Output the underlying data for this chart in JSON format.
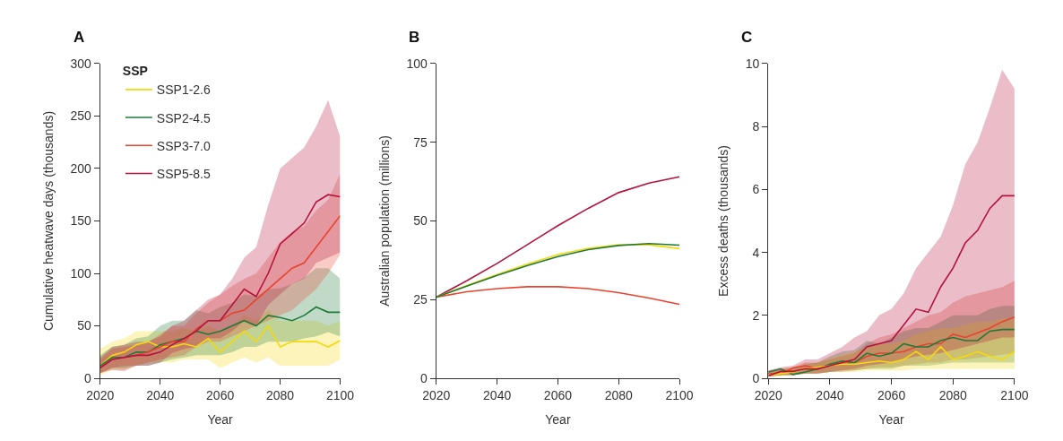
{
  "chart_data": [
    {
      "type": "line",
      "title": "A",
      "xlabel": "Year",
      "ylabel": "Cumulative heatwave days (thousands)",
      "legend_title": "SSP",
      "legend": "top left",
      "xlim": [
        2020,
        2100
      ],
      "xticks": [
        2020,
        2040,
        2060,
        2080,
        2100
      ],
      "ylim": [
        0,
        300
      ],
      "yticks": [
        0,
        50,
        100,
        150,
        200,
        250,
        300
      ],
      "x": [
        2020,
        2024,
        2028,
        2032,
        2036,
        2040,
        2044,
        2048,
        2052,
        2056,
        2060,
        2064,
        2068,
        2072,
        2076,
        2080,
        2084,
        2088,
        2092,
        2096,
        2100
      ],
      "series": [
        {
          "name": "SSP1-2.6",
          "color": "#f5d90a",
          "values": [
            12,
            22,
            25,
            32,
            35,
            30,
            30,
            33,
            30,
            38,
            25,
            35,
            45,
            35,
            50,
            30,
            35,
            35,
            35,
            30,
            36
          ],
          "lower": [
            3,
            8,
            8,
            12,
            15,
            15,
            15,
            18,
            18,
            18,
            10,
            15,
            20,
            15,
            20,
            12,
            12,
            12,
            12,
            12,
            18
          ],
          "upper": [
            28,
            35,
            38,
            45,
            45,
            45,
            45,
            48,
            45,
            50,
            45,
            50,
            60,
            55,
            65,
            55,
            55,
            55,
            55,
            50,
            55
          ]
        },
        {
          "name": "SSP2-4.5",
          "color": "#1f7a3a",
          "values": [
            12,
            20,
            20,
            25,
            25,
            32,
            35,
            38,
            45,
            42,
            45,
            50,
            55,
            50,
            60,
            58,
            55,
            60,
            68,
            63,
            63
          ],
          "lower": [
            5,
            10,
            10,
            12,
            12,
            15,
            18,
            20,
            22,
            22,
            22,
            25,
            30,
            30,
            35,
            35,
            35,
            38,
            40,
            44,
            40
          ],
          "upper": [
            22,
            30,
            32,
            38,
            40,
            50,
            55,
            55,
            65,
            62,
            68,
            72,
            80,
            78,
            85,
            86,
            90,
            96,
            105,
            105,
            95
          ]
        },
        {
          "name": "SSP3-7.0",
          "color": "#e8432e",
          "values": [
            10,
            18,
            20,
            22,
            25,
            30,
            35,
            35,
            47,
            55,
            55,
            62,
            65,
            75,
            85,
            95,
            105,
            110,
            125,
            140,
            155
          ],
          "lower": [
            5,
            10,
            12,
            12,
            15,
            18,
            20,
            22,
            30,
            35,
            35,
            40,
            45,
            50,
            55,
            60,
            65,
            75,
            85,
            100,
            118
          ],
          "upper": [
            18,
            28,
            30,
            32,
            35,
            42,
            50,
            50,
            62,
            72,
            80,
            88,
            95,
            100,
            115,
            130,
            140,
            145,
            160,
            170,
            195
          ]
        },
        {
          "name": "SSP5-8.5",
          "color": "#b5123e",
          "values": [
            10,
            18,
            20,
            22,
            22,
            25,
            32,
            38,
            45,
            55,
            55,
            70,
            85,
            78,
            100,
            128,
            138,
            148,
            168,
            175,
            173
          ],
          "lower": [
            5,
            8,
            7,
            12,
            12,
            15,
            24,
            28,
            30,
            38,
            38,
            45,
            55,
            50,
            70,
            80,
            90,
            95,
            110,
            115,
            120
          ],
          "upper": [
            20,
            30,
            32,
            35,
            35,
            40,
            50,
            55,
            65,
            75,
            80,
            95,
            115,
            125,
            165,
            200,
            210,
            220,
            240,
            265,
            230
          ]
        }
      ]
    },
    {
      "type": "line",
      "title": "B",
      "xlabel": "Year",
      "ylabel": "Australian population (millions)",
      "xlim": [
        2020,
        2100
      ],
      "xticks": [
        2020,
        2040,
        2060,
        2080,
        2100
      ],
      "ylim": [
        0,
        100
      ],
      "yticks": [
        0,
        25,
        50,
        75,
        100
      ],
      "x": [
        2020,
        2030,
        2040,
        2050,
        2060,
        2070,
        2080,
        2090,
        2100
      ],
      "series": [
        {
          "color": "#b5123e",
          "values": [
            25.8,
            31,
            36.5,
            42.5,
            48.5,
            54,
            59,
            62,
            64
          ]
        },
        {
          "color": "#e8432e",
          "values": [
            25.8,
            27.5,
            28.5,
            29.1,
            29.1,
            28.5,
            27.2,
            25.5,
            23.5
          ]
        },
        {
          "color": "#f5d90a",
          "values": [
            25.8,
            29.5,
            33,
            36.3,
            39.3,
            41.3,
            42.4,
            42.4,
            41.2
          ]
        },
        {
          "color": "#1f7a3a",
          "values": [
            25.8,
            29.3,
            32.7,
            35.8,
            38.7,
            40.9,
            42.2,
            42.8,
            42.3
          ]
        }
      ]
    },
    {
      "type": "line",
      "title": "C",
      "xlabel": "Year",
      "ylabel": "Excess deaths (thousands)",
      "xlim": [
        2020,
        2100
      ],
      "xticks": [
        2020,
        2040,
        2060,
        2080,
        2100
      ],
      "ylim": [
        0,
        10
      ],
      "yticks": [
        0,
        2,
        4,
        6,
        8,
        10
      ],
      "x": [
        2020,
        2024,
        2028,
        2032,
        2036,
        2040,
        2044,
        2048,
        2052,
        2056,
        2060,
        2064,
        2068,
        2072,
        2076,
        2080,
        2084,
        2088,
        2092,
        2096,
        2100
      ],
      "series": [
        {
          "color": "#e8432e",
          "values": [
            0.15,
            0.13,
            0.33,
            0.4,
            0.3,
            0.4,
            0.45,
            0.5,
            0.7,
            0.8,
            0.8,
            0.85,
            1.0,
            1.1,
            1.1,
            1.4,
            1.3,
            1.45,
            1.6,
            1.8,
            1.95
          ],
          "lower": [
            0.05,
            0.1,
            0.1,
            0.15,
            0.15,
            0.2,
            0.2,
            0.25,
            0.3,
            0.35,
            0.35,
            0.4,
            0.45,
            0.5,
            0.5,
            0.6,
            0.6,
            0.65,
            0.7,
            0.75,
            0.8
          ],
          "upper": [
            0.25,
            0.3,
            0.35,
            0.5,
            0.5,
            0.6,
            0.7,
            0.8,
            1.1,
            1.3,
            1.4,
            1.6,
            1.8,
            2.0,
            2.1,
            2.4,
            2.6,
            2.7,
            2.8,
            2.9,
            3.1
          ]
        },
        {
          "color": "#1f7a3a",
          "values": [
            0.2,
            0.3,
            0.12,
            0.2,
            0.3,
            0.45,
            0.55,
            0.5,
            0.8,
            0.7,
            0.8,
            1.1,
            1.0,
            1.0,
            1.2,
            1.3,
            1.2,
            1.2,
            1.5,
            1.55,
            1.55
          ],
          "lower": [
            0.05,
            0.1,
            0.1,
            0.15,
            0.15,
            0.2,
            0.25,
            0.25,
            0.3,
            0.3,
            0.3,
            0.4,
            0.4,
            0.4,
            0.45,
            0.5,
            0.5,
            0.5,
            0.5,
            0.5,
            0.5
          ],
          "upper": [
            0.2,
            0.3,
            0.3,
            0.45,
            0.5,
            0.7,
            0.85,
            0.9,
            1.2,
            1.1,
            1.3,
            1.5,
            1.6,
            1.6,
            1.8,
            2.0,
            2.0,
            2.0,
            2.2,
            2.3,
            2.3
          ]
        },
        {
          "color": "#f5d90a",
          "values": [
            0.1,
            0.15,
            0.2,
            0.3,
            0.35,
            0.4,
            0.45,
            0.45,
            0.5,
            0.55,
            0.5,
            0.6,
            0.85,
            0.6,
            1.0,
            0.6,
            0.7,
            0.85,
            0.7,
            0.6,
            0.85
          ],
          "lower": [
            0.05,
            0.08,
            0.1,
            0.15,
            0.15,
            0.2,
            0.2,
            0.2,
            0.25,
            0.25,
            0.25,
            0.25,
            0.3,
            0.3,
            0.3,
            0.3,
            0.3,
            0.3,
            0.3,
            0.3,
            0.3
          ],
          "upper": [
            0.2,
            0.3,
            0.35,
            0.45,
            0.5,
            0.65,
            0.75,
            0.85,
            1.0,
            1.1,
            1.1,
            1.2,
            1.4,
            1.5,
            1.6,
            1.6,
            1.7,
            1.8,
            1.8,
            1.9,
            1.9
          ]
        },
        {
          "color": "#b5123e",
          "values": [
            0.08,
            0.22,
            0.22,
            0.3,
            0.3,
            0.4,
            0.5,
            0.6,
            1.0,
            1.1,
            1.2,
            1.7,
            2.2,
            2.1,
            2.9,
            3.5,
            4.3,
            4.7,
            5.4,
            5.8,
            5.8
          ],
          "lower": [
            0.05,
            0.1,
            0.1,
            0.15,
            0.15,
            0.2,
            0.25,
            0.3,
            0.4,
            0.45,
            0.5,
            0.6,
            0.7,
            0.75,
            0.8,
            0.9,
            1.0,
            1.1,
            1.2,
            1.3,
            1.3
          ],
          "upper": [
            0.25,
            0.35,
            0.4,
            0.6,
            0.6,
            0.8,
            1.0,
            1.3,
            1.5,
            2.0,
            2.2,
            2.7,
            3.5,
            4.0,
            4.5,
            5.5,
            6.8,
            7.5,
            8.6,
            9.8,
            9.2
          ]
        }
      ]
    }
  ]
}
